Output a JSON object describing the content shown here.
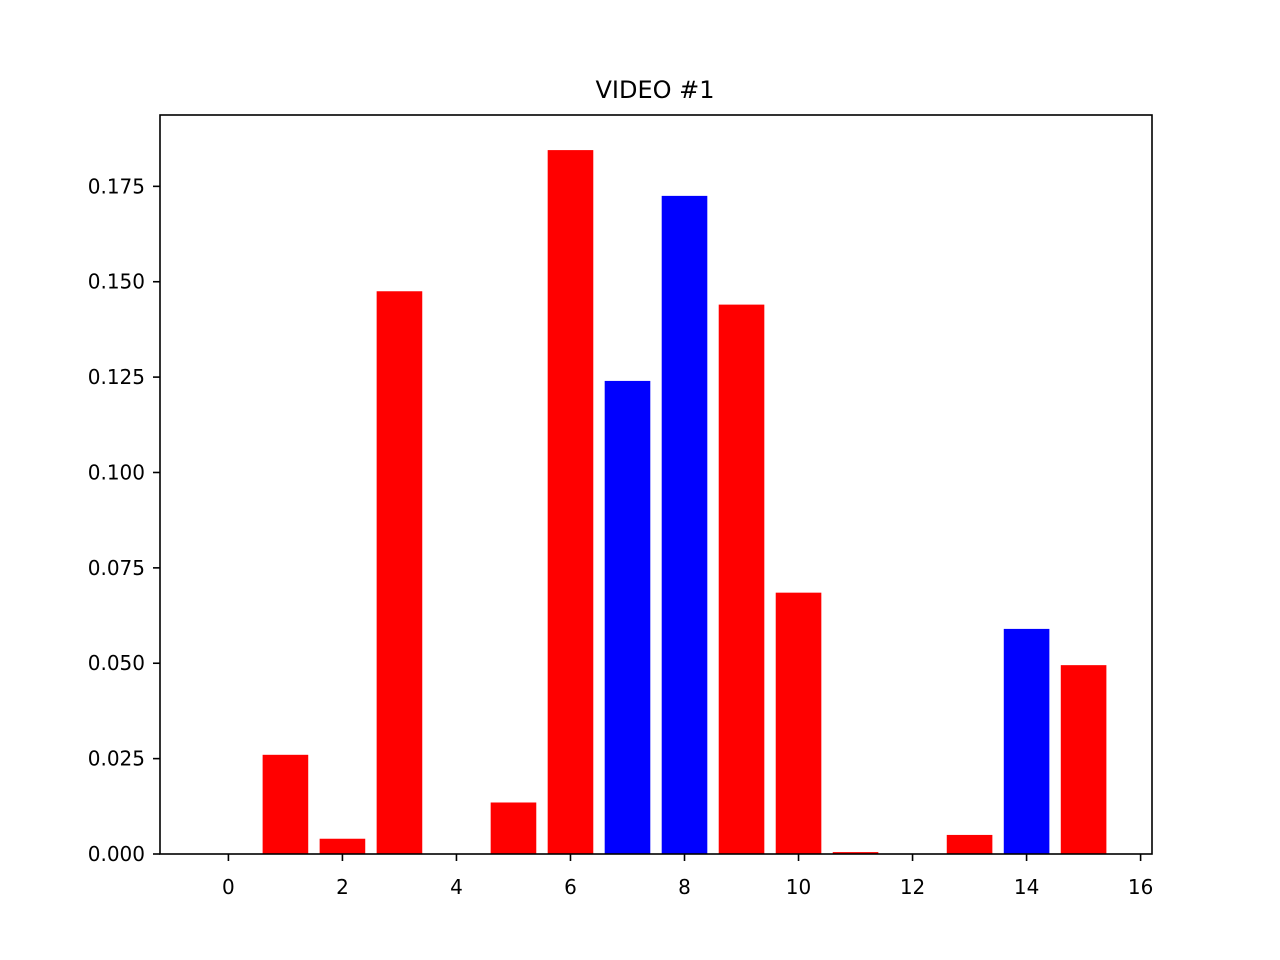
{
  "chart_data": {
    "type": "bar",
    "title": "VIDEO #1",
    "xlabel": "",
    "ylabel": "",
    "x": [
      0,
      1,
      2,
      3,
      4,
      5,
      6,
      7,
      8,
      9,
      10,
      11,
      12,
      13,
      14,
      15
    ],
    "values": [
      0.0,
      0.026,
      0.004,
      0.1475,
      0.0,
      0.0135,
      0.1845,
      0.124,
      0.1725,
      0.144,
      0.0685,
      0.0005,
      0.0,
      0.005,
      0.059,
      0.0495
    ],
    "bar_colors": [
      "#ff0000",
      "#ff0000",
      "#ff0000",
      "#ff0000",
      "#ff0000",
      "#ff0000",
      "#ff0000",
      "#0000ff",
      "#0000ff",
      "#ff0000",
      "#ff0000",
      "#ff0000",
      "#ff0000",
      "#ff0000",
      "#0000ff",
      "#ff0000"
    ],
    "xlim": [
      -1.2,
      16.2
    ],
    "ylim": [
      0,
      0.1937
    ],
    "xticks": [
      0,
      2,
      4,
      6,
      8,
      10,
      12,
      14,
      16
    ],
    "yticks": [
      0.0,
      0.025,
      0.05,
      0.075,
      0.1,
      0.125,
      0.15,
      0.175
    ],
    "ytick_labels": [
      "0.000",
      "0.025",
      "0.050",
      "0.075",
      "0.100",
      "0.125",
      "0.150",
      "0.175"
    ],
    "bar_width": 0.8,
    "grid": false,
    "legend": "none"
  }
}
